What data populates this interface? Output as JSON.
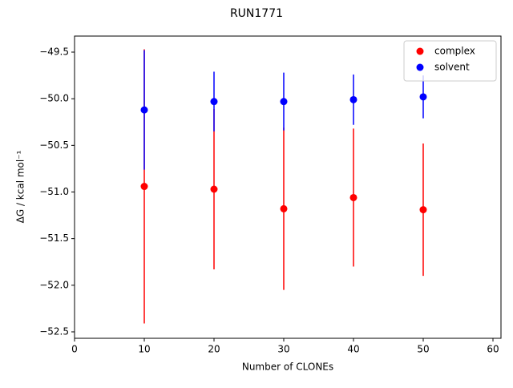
{
  "chart_data": {
    "type": "errorbar",
    "title": "RUN1771",
    "x_label": "Number of CLONEs",
    "y_label": "ΔG / kcal mol⁻¹",
    "x": [
      10,
      20,
      30,
      40,
      50
    ],
    "series": [
      {
        "name": "complex",
        "color": "#ff0000",
        "values": [
          -50.94,
          -50.97,
          -51.18,
          -51.06,
          -51.19
        ],
        "errors": [
          1.47,
          0.86,
          0.87,
          0.74,
          0.71
        ]
      },
      {
        "name": "solvent",
        "color": "#0000ff",
        "values": [
          -50.12,
          -50.03,
          -50.03,
          -50.01,
          -49.98
        ],
        "errors": [
          0.64,
          0.32,
          0.31,
          0.27,
          0.23
        ]
      }
    ],
    "xlim": [
      0,
      61.15
    ],
    "xticks": [
      0,
      10,
      20,
      30,
      40,
      50,
      60
    ],
    "ylim": [
      -52.569,
      -49.328
    ],
    "yticks": [
      {
        "value": -52.5,
        "label": "−52.5"
      },
      {
        "value": -52.0,
        "label": "−52.0"
      },
      {
        "value": -51.5,
        "label": "−51.5"
      },
      {
        "value": -51.0,
        "label": "−51.0"
      },
      {
        "value": -50.5,
        "label": "−50.5"
      },
      {
        "value": -50.0,
        "label": "−50.0"
      },
      {
        "value": -49.5,
        "label": "−49.5"
      }
    ],
    "legend": "upper right"
  }
}
